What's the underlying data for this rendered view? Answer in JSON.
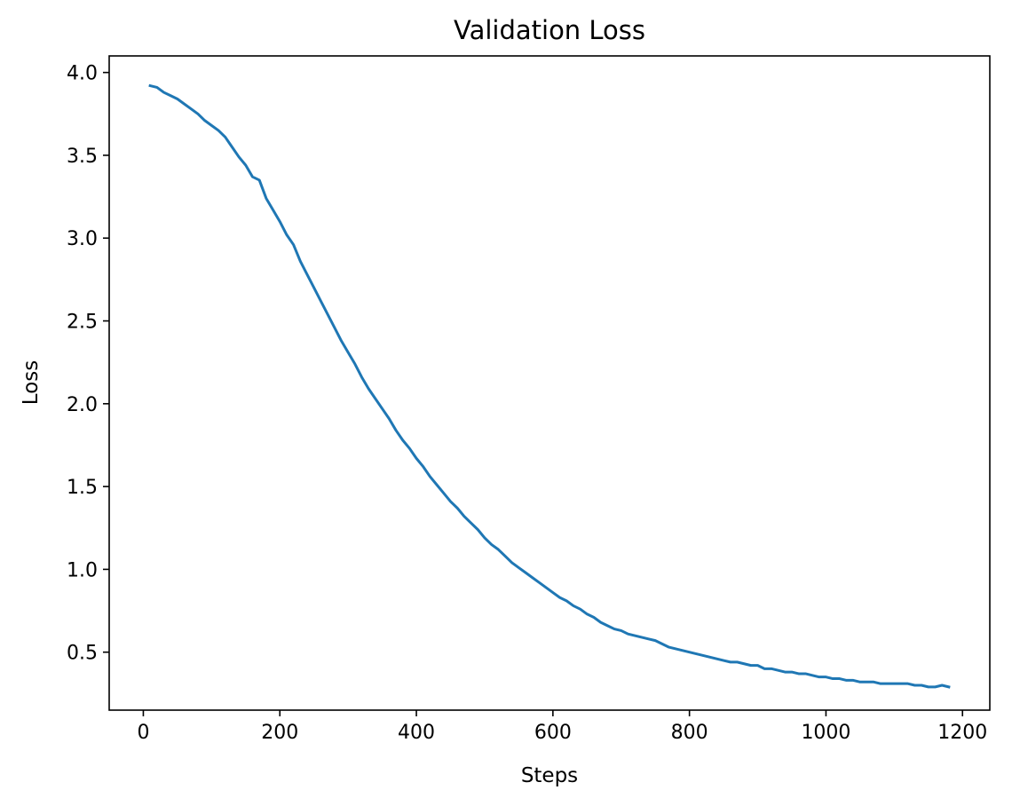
{
  "chart_data": {
    "type": "line",
    "title": "Validation Loss",
    "xlabel": "Steps",
    "ylabel": "Loss",
    "xlim": [
      -50,
      1240
    ],
    "ylim": [
      0.15,
      4.1
    ],
    "x_ticks": [
      0,
      200,
      400,
      600,
      800,
      1000,
      1200
    ],
    "y_ticks": [
      0.5,
      1.0,
      1.5,
      2.0,
      2.5,
      3.0,
      3.5,
      4.0
    ],
    "x_tick_labels": [
      "0",
      "200",
      "400",
      "600",
      "800",
      "1000",
      "1200"
    ],
    "y_tick_labels": [
      "0.5",
      "1.0",
      "1.5",
      "2.0",
      "2.5",
      "3.0",
      "3.5",
      "4.0"
    ],
    "grid": false,
    "legend": "none",
    "series": [
      {
        "color": "#1f77b4",
        "x": [
          10,
          20,
          30,
          40,
          50,
          60,
          70,
          80,
          90,
          100,
          110,
          120,
          130,
          140,
          150,
          160,
          170,
          180,
          190,
          200,
          210,
          220,
          230,
          240,
          250,
          260,
          270,
          280,
          290,
          300,
          310,
          320,
          330,
          340,
          350,
          360,
          370,
          380,
          390,
          400,
          410,
          420,
          430,
          440,
          450,
          460,
          470,
          480,
          490,
          500,
          510,
          520,
          530,
          540,
          550,
          560,
          570,
          580,
          590,
          600,
          610,
          620,
          630,
          640,
          650,
          660,
          670,
          680,
          690,
          700,
          710,
          720,
          730,
          740,
          750,
          760,
          770,
          780,
          790,
          800,
          810,
          820,
          830,
          840,
          850,
          860,
          870,
          880,
          890,
          900,
          910,
          920,
          930,
          940,
          950,
          960,
          970,
          980,
          990,
          1000,
          1010,
          1020,
          1030,
          1040,
          1050,
          1060,
          1070,
          1080,
          1090,
          1100,
          1110,
          1120,
          1130,
          1140,
          1150,
          1160,
          1170,
          1180
        ],
        "y": [
          3.92,
          3.91,
          3.88,
          3.86,
          3.84,
          3.81,
          3.78,
          3.75,
          3.71,
          3.68,
          3.65,
          3.61,
          3.55,
          3.49,
          3.44,
          3.37,
          3.35,
          3.24,
          3.17,
          3.1,
          3.02,
          2.96,
          2.86,
          2.78,
          2.7,
          2.62,
          2.54,
          2.46,
          2.38,
          2.31,
          2.24,
          2.16,
          2.09,
          2.03,
          1.97,
          1.91,
          1.84,
          1.78,
          1.73,
          1.67,
          1.62,
          1.56,
          1.51,
          1.46,
          1.41,
          1.37,
          1.32,
          1.28,
          1.24,
          1.19,
          1.15,
          1.12,
          1.08,
          1.04,
          1.01,
          0.98,
          0.95,
          0.92,
          0.89,
          0.86,
          0.83,
          0.81,
          0.78,
          0.76,
          0.73,
          0.71,
          0.68,
          0.66,
          0.64,
          0.63,
          0.61,
          0.6,
          0.59,
          0.58,
          0.57,
          0.55,
          0.53,
          0.52,
          0.51,
          0.5,
          0.49,
          0.48,
          0.47,
          0.46,
          0.45,
          0.44,
          0.44,
          0.43,
          0.42,
          0.42,
          0.4,
          0.4,
          0.39,
          0.38,
          0.38,
          0.37,
          0.37,
          0.36,
          0.35,
          0.35,
          0.34,
          0.34,
          0.33,
          0.33,
          0.32,
          0.32,
          0.32,
          0.31,
          0.31,
          0.31,
          0.31,
          0.31,
          0.3,
          0.3,
          0.29,
          0.29,
          0.3,
          0.29
        ]
      }
    ]
  }
}
